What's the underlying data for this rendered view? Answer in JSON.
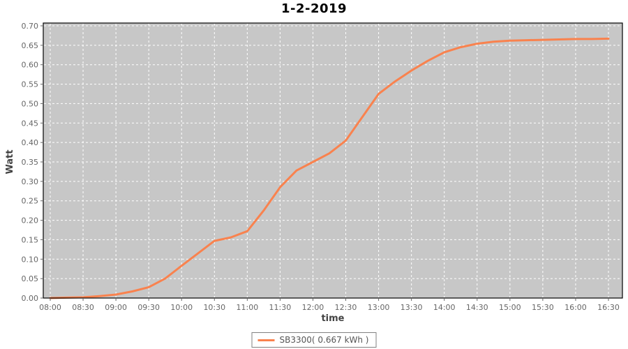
{
  "title": "1-2-2019",
  "chart_data": {
    "type": "line",
    "title": "1-2-2019",
    "xlabel": "time",
    "ylabel": "Watt",
    "xlim": [
      "08:00",
      "16:30"
    ],
    "ylim": [
      0.0,
      0.7
    ],
    "y_tick_step": 0.05,
    "grid": "white dashed gridlines on gray plot background",
    "x_ticks": [
      "08:00",
      "08:30",
      "09:00",
      "09:30",
      "10:00",
      "10:30",
      "11:00",
      "11:30",
      "12:00",
      "12:30",
      "13:00",
      "13:30",
      "14:00",
      "14:30",
      "15:00",
      "15:30",
      "16:00",
      "16:30"
    ],
    "y_ticks": [
      "0.00",
      "0.05",
      "0.10",
      "0.15",
      "0.20",
      "0.25",
      "0.30",
      "0.35",
      "0.40",
      "0.45",
      "0.50",
      "0.55",
      "0.60",
      "0.65",
      "0.70"
    ],
    "x": [
      "08:00",
      "08:15",
      "08:30",
      "08:45",
      "09:00",
      "09:15",
      "09:30",
      "09:45",
      "10:00",
      "10:15",
      "10:30",
      "10:45",
      "11:00",
      "11:15",
      "11:30",
      "11:45",
      "12:00",
      "12:15",
      "12:30",
      "12:45",
      "13:00",
      "13:15",
      "13:30",
      "13:45",
      "14:00",
      "14:15",
      "14:30",
      "14:45",
      "15:00",
      "15:15",
      "15:30",
      "15:45",
      "16:00",
      "16:15",
      "16:30"
    ],
    "values": [
      0.0,
      0.001,
      0.002,
      0.005,
      0.009,
      0.017,
      0.028,
      0.05,
      0.083,
      0.115,
      0.147,
      0.156,
      0.172,
      0.225,
      0.285,
      0.328,
      0.35,
      0.372,
      0.405,
      0.465,
      0.525,
      0.557,
      0.585,
      0.61,
      0.632,
      0.645,
      0.654,
      0.659,
      0.662,
      0.663,
      0.664,
      0.665,
      0.666,
      0.666,
      0.667
    ],
    "legend": {
      "position": "bottom",
      "entries": [
        {
          "label": "SB3300( 0.667 kWh )",
          "color": "#F9824E"
        }
      ]
    },
    "colors": {
      "line": "#F9824E",
      "plot_bg": "#C7C7C7",
      "plot_border": "#000000",
      "grid": "#FFFFFF",
      "tick_text": "#666666",
      "axis_label_text": "#444444",
      "legend_text": "#555555",
      "legend_border": "#808080",
      "title_text": "#000000"
    }
  }
}
